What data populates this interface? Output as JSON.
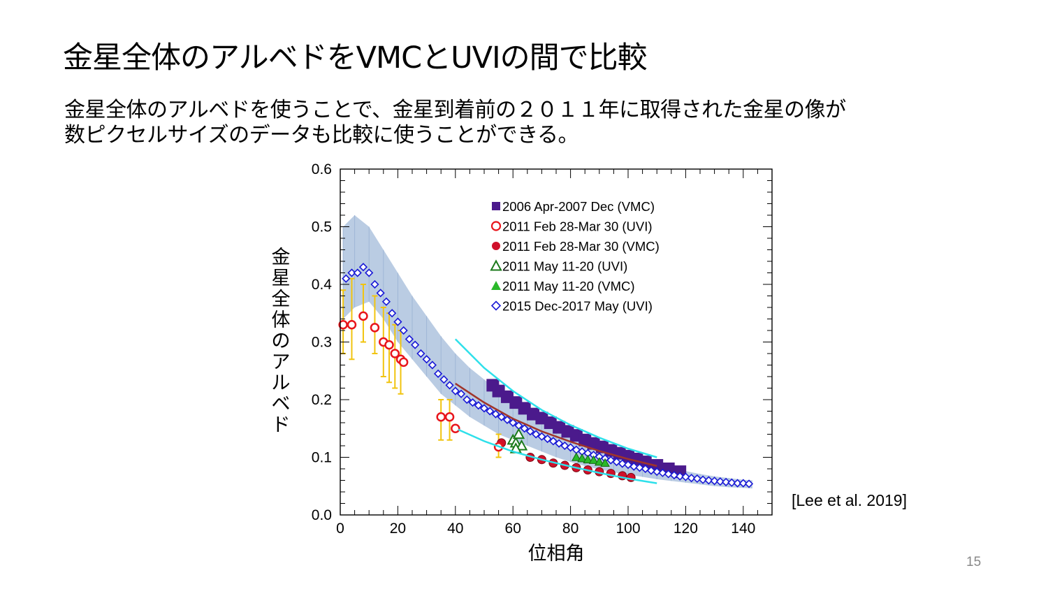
{
  "slide": {
    "title": "金星全体のアルベドをVMCとUVIの間で比較",
    "body_lines": [
      "金星全体のアルベドを使うことで、金星到着前の２０１１年に取得された金星の像が",
      "数ピクセルサイズのデータも比較に使うことができる。"
    ],
    "citation": "[Lee et al. 2019]",
    "page_number": "15"
  },
  "chart_data": {
    "type": "scatter",
    "xlabel": "位相角",
    "ylabel": "金星全体のアルベド",
    "xlim": [
      0,
      150
    ],
    "ylim": [
      0,
      0.6
    ],
    "x_ticks": [
      "0",
      "20",
      "40",
      "60",
      "80",
      "100",
      "120",
      "140"
    ],
    "y_ticks": [
      "0.0",
      "0.1",
      "0.2",
      "0.3",
      "0.4",
      "0.5",
      "0.6"
    ],
    "legend_position": "top-center",
    "series": [
      {
        "name": "2006 Apr-2007 Dec (VMC)",
        "marker": "square-filled",
        "color": "#4b1a8c",
        "x": [
          53,
          55,
          58,
          61,
          64,
          67,
          70,
          73,
          76,
          79,
          82,
          85,
          88,
          91,
          94,
          97,
          100,
          103,
          106,
          110,
          114,
          118
        ],
        "y": [
          0.225,
          0.215,
          0.205,
          0.195,
          0.185,
          0.175,
          0.168,
          0.16,
          0.152,
          0.145,
          0.138,
          0.13,
          0.124,
          0.118,
          0.112,
          0.107,
          0.102,
          0.097,
          0.092,
          0.086,
          0.08,
          0.075
        ]
      },
      {
        "name": "2011 Feb 28-Mar 30 (UVI)",
        "marker": "circle-open",
        "color": "#e8151b",
        "x": [
          1,
          4,
          8,
          12,
          15,
          17,
          19,
          21,
          22,
          35,
          38,
          40,
          55
        ],
        "y": [
          0.33,
          0.33,
          0.345,
          0.325,
          0.3,
          0.295,
          0.28,
          0.27,
          0.265,
          0.17,
          0.17,
          0.15,
          0.118
        ]
      },
      {
        "name": "2011 Feb 28-Mar 30 (VMC)",
        "marker": "circle-filled",
        "color": "#d0102a",
        "x": [
          56,
          66,
          70,
          74,
          78,
          82,
          86,
          90,
          94,
          98,
          101
        ],
        "y": [
          0.125,
          0.1,
          0.096,
          0.09,
          0.086,
          0.082,
          0.078,
          0.075,
          0.072,
          0.068,
          0.065
        ]
      },
      {
        "name": "2011 May 11-20 (UVI)",
        "marker": "triangle-open",
        "color": "#1b7a1b",
        "x": [
          60,
          61,
          62,
          63,
          61
        ],
        "y": [
          0.13,
          0.125,
          0.14,
          0.12,
          0.115
        ]
      },
      {
        "name": "2011 May 11-20 (VMC)",
        "marker": "triangle-filled",
        "color": "#2ab82a",
        "x": [
          82,
          84,
          86,
          88,
          90,
          92
        ],
        "y": [
          0.1,
          0.098,
          0.096,
          0.095,
          0.092,
          0.09
        ]
      },
      {
        "name": "2015 Dec-2017 May (UVI)",
        "marker": "diamond-open",
        "color": "#1a1ad6",
        "x": [
          2,
          4,
          6,
          8,
          10,
          12,
          14,
          16,
          18,
          20,
          22,
          24,
          26,
          28,
          30,
          32,
          34,
          36,
          38,
          40,
          42,
          44,
          46,
          48,
          50,
          52,
          54,
          56,
          58,
          60,
          62,
          64,
          66,
          68,
          70,
          72,
          74,
          76,
          78,
          80,
          82,
          84,
          86,
          88,
          90,
          92,
          94,
          96,
          98,
          100,
          102,
          104,
          106,
          108,
          110,
          112,
          114,
          116,
          118,
          120,
          122,
          124,
          126,
          128,
          130,
          132,
          134,
          136,
          138,
          140,
          142
        ],
        "y": [
          0.41,
          0.42,
          0.42,
          0.43,
          0.42,
          0.4,
          0.385,
          0.37,
          0.35,
          0.335,
          0.32,
          0.305,
          0.295,
          0.28,
          0.27,
          0.26,
          0.245,
          0.235,
          0.225,
          0.215,
          0.21,
          0.2,
          0.195,
          0.19,
          0.185,
          0.18,
          0.175,
          0.17,
          0.165,
          0.16,
          0.155,
          0.15,
          0.145,
          0.14,
          0.136,
          0.132,
          0.128,
          0.124,
          0.12,
          0.117,
          0.113,
          0.11,
          0.107,
          0.104,
          0.101,
          0.098,
          0.095,
          0.092,
          0.089,
          0.087,
          0.084,
          0.082,
          0.08,
          0.077,
          0.075,
          0.073,
          0.071,
          0.069,
          0.067,
          0.066,
          0.064,
          0.063,
          0.061,
          0.06,
          0.059,
          0.058,
          0.057,
          0.056,
          0.055,
          0.055,
          0.054
        ]
      }
    ],
    "uncertainty_band": {
      "color": "#aec3de",
      "x": [
        1,
        5,
        10,
        15,
        20,
        25,
        30,
        35,
        40,
        45,
        50,
        55,
        60,
        65,
        70,
        75,
        80,
        85,
        90,
        95,
        100,
        105,
        110,
        115,
        120,
        125,
        130,
        135,
        140,
        143
      ],
      "upper": [
        0.5,
        0.52,
        0.5,
        0.46,
        0.42,
        0.38,
        0.345,
        0.31,
        0.28,
        0.255,
        0.235,
        0.215,
        0.195,
        0.18,
        0.165,
        0.15,
        0.14,
        0.13,
        0.12,
        0.11,
        0.1,
        0.093,
        0.087,
        0.081,
        0.076,
        0.071,
        0.067,
        0.064,
        0.061,
        0.06
      ],
      "lower": [
        0.34,
        0.36,
        0.37,
        0.34,
        0.3,
        0.27,
        0.24,
        0.21,
        0.19,
        0.17,
        0.155,
        0.14,
        0.13,
        0.12,
        0.11,
        0.1,
        0.092,
        0.085,
        0.079,
        0.074,
        0.07,
        0.066,
        0.062,
        0.059,
        0.056,
        0.053,
        0.05,
        0.048,
        0.047,
        0.046
      ]
    },
    "uvi_2011_error_bars": {
      "color": "#f1c40f",
      "x": [
        1,
        4,
        8,
        12,
        15,
        17,
        19,
        21,
        35,
        38,
        55
      ],
      "upper": [
        0.39,
        0.41,
        0.4,
        0.38,
        0.36,
        0.35,
        0.33,
        0.32,
        0.2,
        0.2,
        0.14
      ],
      "lower": [
        0.28,
        0.27,
        0.3,
        0.28,
        0.24,
        0.23,
        0.22,
        0.21,
        0.13,
        0.13,
        0.1
      ]
    },
    "fit_curves": [
      {
        "color": "#2ee0ea",
        "x": [
          40,
          50,
          60,
          70,
          80,
          90,
          100,
          110
        ],
        "y": [
          0.305,
          0.255,
          0.215,
          0.182,
          0.156,
          0.134,
          0.115,
          0.1
        ]
      },
      {
        "color": "#2ee0ea",
        "x": [
          41,
          50,
          60,
          70,
          80,
          90,
          100,
          110
        ],
        "y": [
          0.148,
          0.128,
          0.11,
          0.096,
          0.084,
          0.073,
          0.063,
          0.055
        ]
      },
      {
        "color": "#a0342a",
        "x": [
          40,
          50,
          60,
          70,
          80,
          90,
          100,
          110
        ],
        "y": [
          0.228,
          0.195,
          0.167,
          0.145,
          0.127,
          0.111,
          0.097,
          0.085
        ]
      }
    ]
  }
}
